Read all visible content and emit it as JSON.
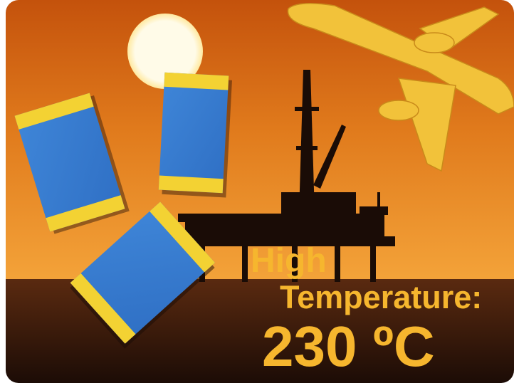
{
  "headline": {
    "line1": "High",
    "line2": "Temperature:",
    "line3": "230 ºC"
  }
}
